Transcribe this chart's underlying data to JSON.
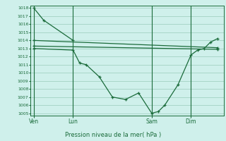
{
  "background_color": "#cff0eb",
  "grid_color": "#99ccbb",
  "line_color": "#1a6b3a",
  "marker": "+",
  "ylabel_min": 1005,
  "ylabel_max": 1018,
  "xlabel_label": "Pression niveau de la mer( hPa )",
  "xtick_labels": [
    "Ven",
    "Lun",
    "Sam",
    "Dim"
  ],
  "xtick_positions": [
    0,
    12,
    36,
    48
  ],
  "xlim": [
    -1,
    58
  ],
  "series0_x": [
    0,
    3,
    12
  ],
  "series0_y": [
    1018.0,
    1016.5,
    1014.0
  ],
  "series1_x": [
    0,
    12,
    14,
    16,
    20,
    24,
    28,
    32,
    36,
    38,
    40,
    44,
    48,
    50,
    52,
    54,
    56
  ],
  "series1_y": [
    1013.0,
    1012.8,
    1011.2,
    1011.0,
    1009.5,
    1007.0,
    1006.7,
    1007.5,
    1005.0,
    1005.2,
    1006.0,
    1008.5,
    1012.2,
    1012.8,
    1013.0,
    1013.8,
    1014.2
  ],
  "series2_x": [
    0,
    56
  ],
  "series2_y": [
    1014.0,
    1013.1
  ],
  "series3_x": [
    0,
    56
  ],
  "series3_y": [
    1013.3,
    1012.9
  ]
}
